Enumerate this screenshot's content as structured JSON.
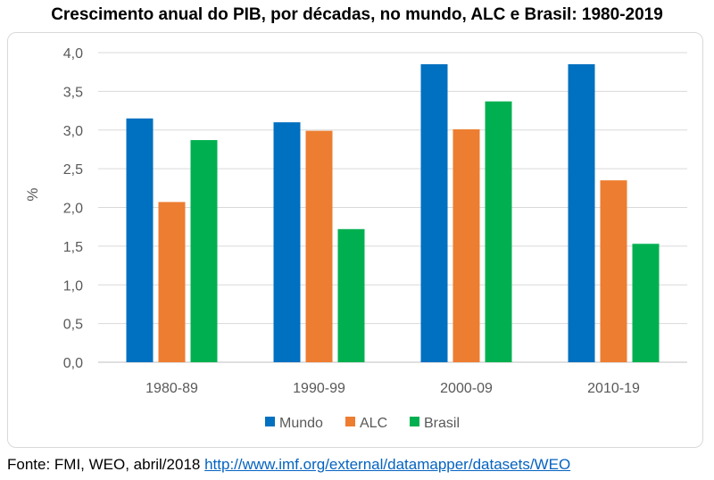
{
  "title": "Crescimento anual do PIB, por décadas, no mundo, ALC e Brasil: 1980-2019",
  "footer": {
    "source_label": "Fonte: FMI, WEO, abril/2018",
    "link_text": "http://www.imf.org/external/datamapper/datasets/WEO"
  },
  "chart_data": {
    "type": "bar",
    "categories": [
      "1980-89",
      "1990-99",
      "2000-09",
      "2010-19"
    ],
    "series": [
      {
        "name": "Mundo",
        "color": "#0070c0",
        "values": [
          3.15,
          3.1,
          3.85,
          3.85
        ]
      },
      {
        "name": "ALC",
        "color": "#ed7d31",
        "values": [
          2.07,
          2.99,
          3.01,
          2.35
        ]
      },
      {
        "name": "Brasil",
        "color": "#00b050",
        "values": [
          2.87,
          1.72,
          3.37,
          1.53
        ]
      }
    ],
    "ylabel": "%",
    "ylim": [
      0,
      4
    ],
    "yticks": [
      "0,0",
      "0,5",
      "1,0",
      "1,5",
      "2,0",
      "2,5",
      "3,0",
      "3,5",
      "4,0"
    ],
    "ytick_values": [
      0,
      0.5,
      1,
      1.5,
      2,
      2.5,
      3,
      3.5,
      4
    ],
    "grid": true,
    "legend_position": "bottom"
  }
}
